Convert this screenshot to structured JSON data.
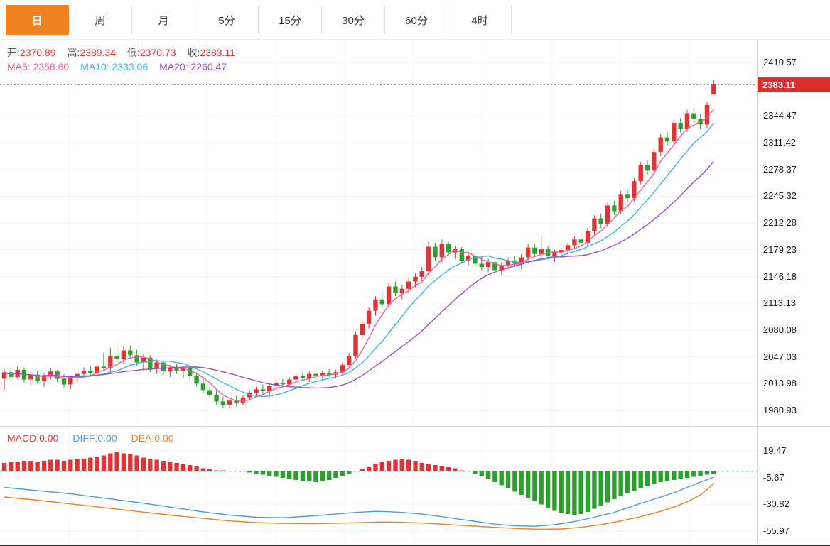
{
  "tabs": {
    "items": [
      {
        "label": "日",
        "active": true
      },
      {
        "label": "周",
        "active": false
      },
      {
        "label": "月",
        "active": false
      },
      {
        "label": "5分",
        "active": false
      },
      {
        "label": "15分",
        "active": false
      },
      {
        "label": "30分",
        "active": false
      },
      {
        "label": "60分",
        "active": false
      },
      {
        "label": "4时",
        "active": false
      }
    ]
  },
  "info": {
    "ohlc": [
      {
        "label": "开:",
        "value": "2370.89"
      },
      {
        "label": "高:",
        "value": "2389.34"
      },
      {
        "label": "低:",
        "value": "2370.73"
      },
      {
        "label": "收:",
        "value": "2383.11"
      }
    ],
    "ma": [
      {
        "text": "MA5: 2358.60"
      },
      {
        "text": "MA10: 2333.06"
      },
      {
        "text": "MA20: 2260.47"
      }
    ]
  },
  "macd_header": {
    "items": [
      {
        "text": "MACD:0.00"
      },
      {
        "text": "DIFF:0.00"
      },
      {
        "text": "DEA:0.00"
      }
    ]
  },
  "colors": {
    "up": "#e03333",
    "down": "#2ca02c",
    "tab_active_bg": "#ef8323",
    "current_price_bg": "#dc3030",
    "ma5": "#ea5fa0",
    "ma10": "#3fb3e3",
    "ma20": "#9b51ba",
    "diff": "#4a9fd8",
    "dea": "#e8821e",
    "zero_line_dash": "#6cc9d6"
  },
  "chart_data": {
    "type": "candlestick",
    "title": "Gold daily candlestick chart with MA overlays and MACD panel",
    "panels": [
      {
        "type": "candlestick",
        "current_price": "2383.11",
        "y_axis": {
          "max": 2410.57,
          "min": 1980.93,
          "labels": [
            "2410.57",
            "2344.47",
            "2311.42",
            "2278.37",
            "2245.32",
            "2212.28",
            "2179.23",
            "2146.18",
            "2113.13",
            "2080.08",
            "2047.03",
            "2013.98",
            "1980.93"
          ]
        },
        "overlays": [
          {
            "name": "MA5",
            "period": 5,
            "color": "#ea5fa0"
          },
          {
            "name": "MA10",
            "period": 10,
            "color": "#3fb3e3"
          },
          {
            "name": "MA20",
            "period": 20,
            "color": "#9b51ba"
          }
        ],
        "candles_ohlc": [
          [
            2020,
            2032,
            2006,
            2028
          ],
          [
            2028,
            2033,
            2018,
            2022
          ],
          [
            2022,
            2035,
            2020,
            2031
          ],
          [
            2031,
            2034,
            2015,
            2019
          ],
          [
            2019,
            2028,
            2012,
            2025
          ],
          [
            2025,
            2030,
            2014,
            2017
          ],
          [
            2017,
            2027,
            2010,
            2024
          ],
          [
            2024,
            2033,
            2019,
            2029
          ],
          [
            2029,
            2031,
            2016,
            2020
          ],
          [
            2020,
            2026,
            2009,
            2013
          ],
          [
            2013,
            2024,
            2007,
            2021
          ],
          [
            2021,
            2029,
            2015,
            2026
          ],
          [
            2026,
            2034,
            2021,
            2030
          ],
          [
            2030,
            2036,
            2024,
            2027
          ],
          [
            2027,
            2038,
            2023,
            2035
          ],
          [
            2035,
            2052,
            2030,
            2033
          ],
          [
            2033,
            2058,
            2028,
            2048
          ],
          [
            2048,
            2062,
            2040,
            2044
          ],
          [
            2044,
            2060,
            2038,
            2055
          ],
          [
            2055,
            2061,
            2045,
            2049
          ],
          [
            2049,
            2056,
            2036,
            2040
          ],
          [
            2040,
            2050,
            2030,
            2046
          ],
          [
            2046,
            2049,
            2028,
            2032
          ],
          [
            2032,
            2044,
            2026,
            2040
          ],
          [
            2040,
            2043,
            2025,
            2029
          ],
          [
            2029,
            2037,
            2022,
            2034
          ],
          [
            2034,
            2038,
            2026,
            2030
          ],
          [
            2030,
            2036,
            2021,
            2033
          ],
          [
            2033,
            2035,
            2018,
            2023
          ],
          [
            2023,
            2028,
            2010,
            2014
          ],
          [
            2014,
            2020,
            2002,
            2006
          ],
          [
            2006,
            2012,
            1996,
            2000
          ],
          [
            2000,
            2006,
            1988,
            1992
          ],
          [
            1992,
            1998,
            1984,
            1988
          ],
          [
            1988,
            1996,
            1983,
            1993
          ],
          [
            1993,
            1999,
            1986,
            1990
          ],
          [
            1990,
            2000,
            1987,
            1997
          ],
          [
            1997,
            2006,
            1993,
            2003
          ],
          [
            2003,
            2010,
            1998,
            2007
          ],
          [
            2007,
            2013,
            2001,
            2005
          ],
          [
            2005,
            2014,
            2000,
            2011
          ],
          [
            2011,
            2018,
            2006,
            2015
          ],
          [
            2015,
            2020,
            2009,
            2013
          ],
          [
            2013,
            2022,
            2010,
            2019
          ],
          [
            2019,
            2026,
            2014,
            2023
          ],
          [
            2023,
            2028,
            2017,
            2021
          ],
          [
            2021,
            2029,
            2016,
            2026
          ],
          [
            2026,
            2031,
            2020,
            2024
          ],
          [
            2024,
            2030,
            2019,
            2027
          ],
          [
            2027,
            2032,
            2022,
            2025
          ],
          [
            2025,
            2031,
            2020,
            2028
          ],
          [
            2028,
            2040,
            2024,
            2037
          ],
          [
            2037,
            2052,
            2033,
            2048
          ],
          [
            2048,
            2078,
            2045,
            2074
          ],
          [
            2074,
            2092,
            2070,
            2088
          ],
          [
            2088,
            2108,
            2082,
            2104
          ],
          [
            2104,
            2122,
            2098,
            2118
          ],
          [
            2118,
            2130,
            2108,
            2112
          ],
          [
            2112,
            2138,
            2108,
            2134
          ],
          [
            2134,
            2140,
            2122,
            2126
          ],
          [
            2126,
            2136,
            2118,
            2131
          ],
          [
            2131,
            2144,
            2126,
            2140
          ],
          [
            2140,
            2150,
            2133,
            2146
          ],
          [
            2146,
            2158,
            2140,
            2153
          ],
          [
            2153,
            2190,
            2148,
            2183
          ],
          [
            2183,
            2188,
            2165,
            2170
          ],
          [
            2170,
            2192,
            2164,
            2186
          ],
          [
            2186,
            2189,
            2172,
            2176
          ],
          [
            2176,
            2184,
            2168,
            2180
          ],
          [
            2180,
            2183,
            2162,
            2166
          ],
          [
            2166,
            2176,
            2160,
            2172
          ],
          [
            2172,
            2175,
            2158,
            2162
          ],
          [
            2162,
            2170,
            2154,
            2158
          ],
          [
            2158,
            2168,
            2152,
            2164
          ],
          [
            2164,
            2167,
            2150,
            2154
          ],
          [
            2154,
            2164,
            2148,
            2160
          ],
          [
            2160,
            2170,
            2155,
            2166
          ],
          [
            2166,
            2172,
            2158,
            2162
          ],
          [
            2162,
            2174,
            2156,
            2170
          ],
          [
            2170,
            2186,
            2164,
            2182
          ],
          [
            2182,
            2186,
            2170,
            2174
          ],
          [
            2174,
            2196,
            2168,
            2180
          ],
          [
            2180,
            2184,
            2168,
            2172
          ],
          [
            2172,
            2180,
            2164,
            2176
          ],
          [
            2176,
            2182,
            2170,
            2179
          ],
          [
            2179,
            2188,
            2174,
            2185
          ],
          [
            2185,
            2196,
            2180,
            2192
          ],
          [
            2192,
            2198,
            2184,
            2188
          ],
          [
            2188,
            2206,
            2184,
            2202
          ],
          [
            2202,
            2222,
            2198,
            2218
          ],
          [
            2218,
            2224,
            2206,
            2211
          ],
          [
            2211,
            2238,
            2207,
            2234
          ],
          [
            2234,
            2240,
            2222,
            2227
          ],
          [
            2227,
            2252,
            2223,
            2248
          ],
          [
            2248,
            2254,
            2238,
            2243
          ],
          [
            2243,
            2268,
            2239,
            2264
          ],
          [
            2264,
            2288,
            2260,
            2284
          ],
          [
            2284,
            2290,
            2272,
            2277
          ],
          [
            2277,
            2304,
            2273,
            2300
          ],
          [
            2300,
            2322,
            2295,
            2318
          ],
          [
            2318,
            2326,
            2308,
            2313
          ],
          [
            2313,
            2340,
            2309,
            2336
          ],
          [
            2336,
            2342,
            2324,
            2329
          ],
          [
            2329,
            2352,
            2325,
            2348
          ],
          [
            2348,
            2354,
            2336,
            2341
          ],
          [
            2341,
            2347,
            2328,
            2334
          ],
          [
            2334,
            2362,
            2330,
            2358
          ],
          [
            2370.89,
            2389.34,
            2370.73,
            2383.11
          ]
        ]
      },
      {
        "type": "macd",
        "y_axis": {
          "labels": [
            "19.47",
            "-5.67",
            "-30.82",
            "-55.97"
          ]
        },
        "hist": [
          8,
          9,
          9,
          10,
          10,
          9,
          10,
          11,
          11,
          10,
          11,
          12,
          12,
          13,
          14,
          15,
          17,
          18,
          17,
          16,
          15,
          13,
          12,
          11,
          10,
          9,
          8,
          7,
          6,
          5,
          3,
          2,
          1,
          1,
          0,
          0,
          0,
          -1,
          -2,
          -3,
          -4,
          -5,
          -6,
          -7,
          -8,
          -9,
          -9,
          -10,
          -9,
          -8,
          -6,
          -4,
          -2,
          0,
          2,
          4,
          7,
          9,
          10,
          11,
          12,
          11,
          10,
          8,
          7,
          6,
          5,
          4,
          3,
          1,
          0,
          -2,
          -4,
          -7,
          -10,
          -13,
          -16,
          -19,
          -22,
          -25,
          -28,
          -31,
          -34,
          -37,
          -39,
          -40,
          -41,
          -40,
          -38,
          -35,
          -32,
          -29,
          -26,
          -23,
          -20,
          -18,
          -16,
          -14,
          -12,
          -10,
          -9,
          -8,
          -7,
          -6,
          -5,
          -4,
          -3,
          -2
        ],
        "diff_points": [
          [
            0,
            -15
          ],
          [
            5,
            -18
          ],
          [
            10,
            -21
          ],
          [
            15,
            -25
          ],
          [
            20,
            -29
          ],
          [
            25,
            -33.5
          ],
          [
            30,
            -38
          ],
          [
            34,
            -41
          ],
          [
            38,
            -43
          ],
          [
            42,
            -43.5
          ],
          [
            46,
            -42
          ],
          [
            50,
            -40
          ],
          [
            53,
            -38.5
          ],
          [
            56,
            -37.5
          ],
          [
            58,
            -37.8
          ],
          [
            60,
            -38.5
          ],
          [
            63,
            -40
          ],
          [
            66,
            -42.5
          ],
          [
            70,
            -46
          ],
          [
            74,
            -49.5
          ],
          [
            77,
            -51
          ],
          [
            80,
            -51.5
          ],
          [
            83,
            -50
          ],
          [
            86,
            -47
          ],
          [
            89,
            -43
          ],
          [
            92,
            -38.5
          ],
          [
            95,
            -32
          ],
          [
            97,
            -28
          ],
          [
            99,
            -24
          ],
          [
            101,
            -20
          ],
          [
            103,
            -15
          ],
          [
            105,
            -10
          ],
          [
            107,
            -5.5
          ]
        ],
        "dea_points": [
          [
            0,
            -24
          ],
          [
            5,
            -27
          ],
          [
            10,
            -30.5
          ],
          [
            15,
            -34
          ],
          [
            20,
            -37.5
          ],
          [
            25,
            -41
          ],
          [
            30,
            -44
          ],
          [
            34,
            -46.5
          ],
          [
            38,
            -48
          ],
          [
            42,
            -48.8
          ],
          [
            46,
            -49
          ],
          [
            50,
            -48.6
          ],
          [
            54,
            -48
          ],
          [
            57,
            -47.5
          ],
          [
            60,
            -47.8
          ],
          [
            63,
            -48.5
          ],
          [
            66,
            -49.5
          ],
          [
            70,
            -51
          ],
          [
            74,
            -52.5
          ],
          [
            78,
            -53.8
          ],
          [
            81,
            -54.3
          ],
          [
            84,
            -54
          ],
          [
            87,
            -52.5
          ],
          [
            90,
            -50
          ],
          [
            93,
            -46.5
          ],
          [
            96,
            -42.5
          ],
          [
            99,
            -37.5
          ],
          [
            101,
            -33.5
          ],
          [
            103,
            -28.5
          ],
          [
            105,
            -22
          ],
          [
            106,
            -17
          ],
          [
            107,
            -11
          ]
        ]
      }
    ]
  }
}
